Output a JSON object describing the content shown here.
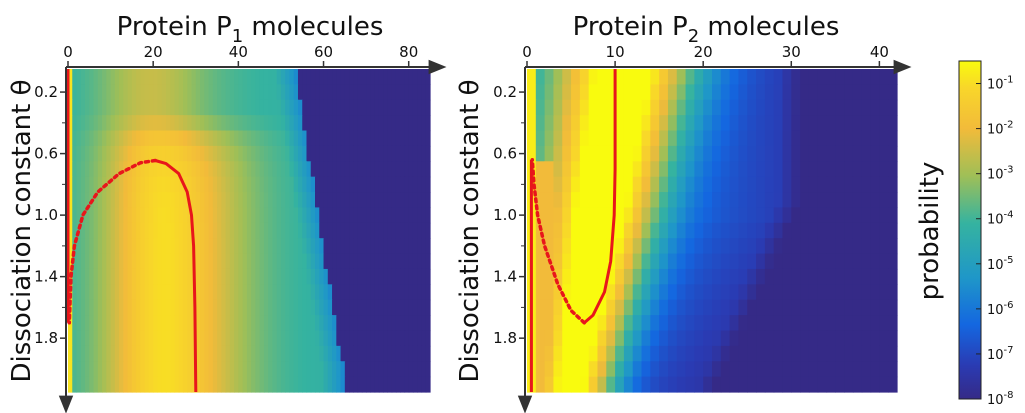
{
  "chart_data": [
    {
      "type": "heatmap",
      "title_main": "Protein P",
      "title_sub": "1",
      "title_tail": " molecules",
      "ylabel": "Dissociation constant θ",
      "x_ticks": [
        "0",
        "20",
        "40",
        "60",
        "80"
      ],
      "y_ticks": [
        "0.2",
        "0.6",
        "1.0",
        "1.4",
        "1.8"
      ],
      "xlim": [
        0,
        85
      ],
      "ylim": [
        0.05,
        2.15
      ],
      "solid_curve": [
        [
          30,
          2.15
        ],
        [
          29.8,
          1.6
        ],
        [
          29.5,
          1.2
        ],
        [
          29,
          1.0
        ],
        [
          28,
          0.85
        ],
        [
          26,
          0.73
        ],
        [
          23,
          0.665
        ],
        [
          20.5,
          0.645
        ]
      ],
      "dotted_curve": [
        [
          20.5,
          0.645
        ],
        [
          17,
          0.66
        ],
        [
          12,
          0.73
        ],
        [
          7,
          0.85
        ],
        [
          3.5,
          1.0
        ],
        [
          1.5,
          1.2
        ],
        [
          0.7,
          1.4
        ],
        [
          0.3,
          1.7
        ]
      ],
      "zero_line": [
        [
          0,
          0.05
        ],
        [
          0,
          1.7
        ]
      ]
    },
    {
      "type": "heatmap",
      "title_main": "Protein P",
      "title_sub": "2",
      "title_tail": " molecules",
      "ylabel": "Dissociation constant θ",
      "x_ticks": [
        "0",
        "10",
        "20",
        "30",
        "40"
      ],
      "y_ticks": [
        "0.2",
        "0.6",
        "1.0",
        "1.4",
        "1.8"
      ],
      "xlim": [
        0,
        42
      ],
      "ylim": [
        0.05,
        2.15
      ],
      "solid_curve": [
        [
          10,
          0.05
        ],
        [
          10,
          0.7
        ],
        [
          9.9,
          1.0
        ],
        [
          9.5,
          1.3
        ],
        [
          8.8,
          1.5
        ],
        [
          7.5,
          1.65
        ],
        [
          6.5,
          1.7
        ]
      ],
      "dotted_curve": [
        [
          6.5,
          1.7
        ],
        [
          5,
          1.62
        ],
        [
          3.5,
          1.45
        ],
        [
          2,
          1.2
        ],
        [
          1.2,
          1.0
        ],
        [
          0.8,
          0.8
        ],
        [
          0.6,
          0.64
        ]
      ],
      "zero_line": [
        [
          0.5,
          0.64
        ],
        [
          0.5,
          2.15
        ]
      ]
    }
  ],
  "colorbar": {
    "label": "probability",
    "ticks": [
      "10-1",
      "10-2",
      "10-3",
      "10-4",
      "10-5",
      "10-6",
      "10-7",
      "10-8"
    ],
    "log_min": -8,
    "log_max": -0.5
  },
  "colors": {
    "curve": "#e8161b",
    "low": "#352a87",
    "mid": "#35b779",
    "high": "#f9fb0e"
  }
}
